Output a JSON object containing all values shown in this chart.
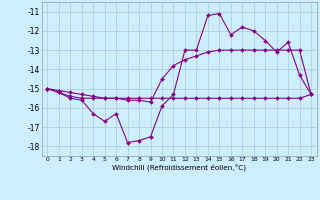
{
  "xlabel": "Windchill (Refroidissement éolien,°C)",
  "x_hours": [
    0,
    1,
    2,
    3,
    4,
    5,
    6,
    7,
    8,
    9,
    10,
    11,
    12,
    13,
    14,
    15,
    16,
    17,
    18,
    19,
    20,
    21,
    22,
    23
  ],
  "line1": [
    -15.0,
    -15.2,
    -15.5,
    -15.6,
    -16.3,
    -16.7,
    -16.3,
    -17.8,
    -17.7,
    -17.5,
    -15.9,
    -15.3,
    -13.0,
    -13.0,
    -11.2,
    -11.1,
    -12.2,
    -11.8,
    -12.0,
    -12.5,
    -13.1,
    -12.6,
    -14.3,
    -15.3
  ],
  "line2": [
    -15.0,
    -15.2,
    -15.4,
    -15.5,
    -15.5,
    -15.5,
    -15.5,
    -15.5,
    -15.5,
    -15.5,
    -15.5,
    -15.5,
    -15.5,
    -15.5,
    -15.5,
    -15.5,
    -15.5,
    -15.5,
    -15.5,
    -15.5,
    -15.5,
    -15.5,
    -15.5,
    -15.3
  ],
  "line3": [
    -15.0,
    -15.1,
    -15.2,
    -15.3,
    -15.4,
    -15.5,
    -15.5,
    -15.6,
    -15.6,
    -15.7,
    -14.5,
    -13.8,
    -13.5,
    -13.3,
    -13.1,
    -13.0,
    -13.0,
    -13.0,
    -13.0,
    -13.0,
    -13.0,
    -13.0,
    -13.0,
    -15.3
  ],
  "ylim": [
    -18.5,
    -10.5
  ],
  "yticks": [
    -18,
    -17,
    -16,
    -15,
    -14,
    -13,
    -12,
    -11
  ],
  "xticks": [
    0,
    1,
    2,
    3,
    4,
    5,
    6,
    7,
    8,
    9,
    10,
    11,
    12,
    13,
    14,
    15,
    16,
    17,
    18,
    19,
    20,
    21,
    22,
    23
  ],
  "line_color": "#880088",
  "bg_color": "#cceeff",
  "grid_color": "#aacccc",
  "xlabel_fontsize": 5.2,
  "ytick_fontsize": 5.5,
  "xtick_fontsize": 4.3,
  "linewidth": 0.8,
  "markersize": 2.0
}
